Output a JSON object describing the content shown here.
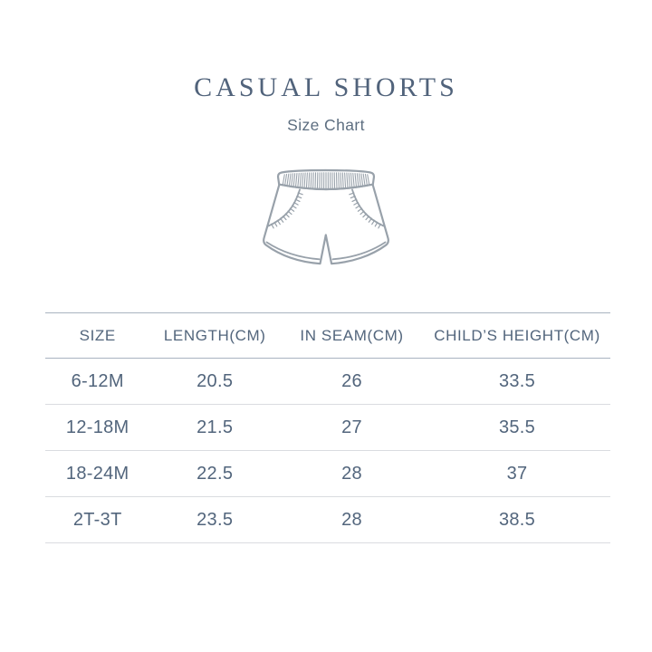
{
  "header": {
    "title": "CASUAL SHORTS",
    "subtitle": "Size Chart"
  },
  "illustration": {
    "name": "casual-shorts-line-drawing"
  },
  "chart_data": {
    "type": "table",
    "title": "CASUAL SHORTS",
    "subtitle": "Size Chart",
    "columns": [
      "SIZE",
      "LENGTH(CM)",
      "IN SEAM(CM)",
      "CHILD’S HEIGHT(CM)"
    ],
    "rows": [
      [
        "6-12M",
        "20.5",
        "26",
        "33.5"
      ],
      [
        "12-18M",
        "21.5",
        "27",
        "35.5"
      ],
      [
        "18-24M",
        "22.5",
        "28",
        "37"
      ],
      [
        "2T-3T",
        "23.5",
        "28",
        "38.5"
      ]
    ]
  },
  "colors": {
    "title": "#51637b",
    "subtitle": "#5d6e80",
    "table_text": "#52657c",
    "strong_line": "#a9b3c0",
    "light_line": "#dadce0",
    "illustration_outline": "#98a1aa",
    "background": "#ffffff"
  }
}
